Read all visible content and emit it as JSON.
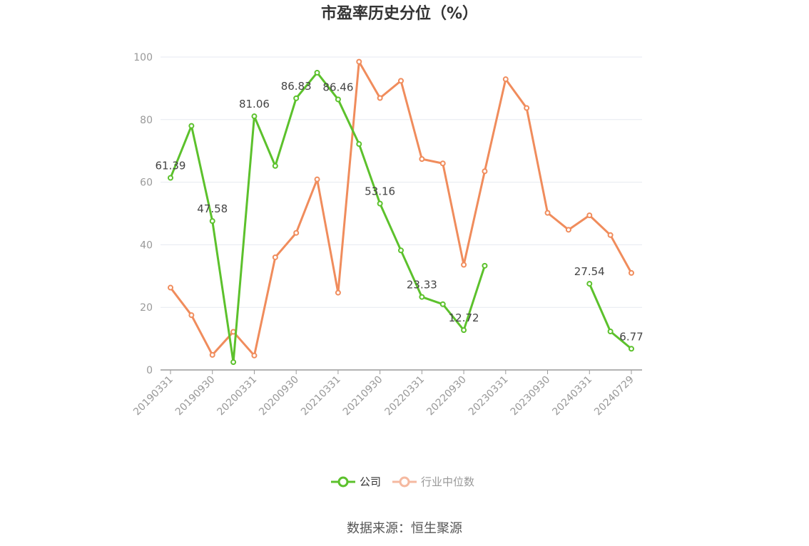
{
  "chart_data": {
    "type": "line",
    "title": "市盈率历史分位（%）",
    "source": "数据来源：恒生聚源",
    "ylim": [
      0,
      100
    ],
    "yticks": [
      0,
      20,
      40,
      60,
      80,
      100
    ],
    "grid": true,
    "legend_position": "bottom",
    "x": [
      "20190331",
      "20190630",
      "20190930",
      "20191231",
      "20200331",
      "20200630",
      "20200930",
      "20201231",
      "20210331",
      "20210630",
      "20210930",
      "20211231",
      "20220331",
      "20220630",
      "20220930",
      "20221231",
      "20230331",
      "20230630",
      "20230930",
      "20231231",
      "20240331",
      "20240630",
      "20240729"
    ],
    "xtick_labels": [
      "20190331",
      "20190930",
      "20200331",
      "20200930",
      "20210331",
      "20210930",
      "20220331",
      "20220930",
      "20230331",
      "20230930",
      "20240331",
      "20240729"
    ],
    "series": [
      {
        "name": "公司",
        "color": "#5cc12c",
        "values": [
          61.39,
          78.0,
          47.58,
          2.5,
          81.06,
          65.2,
          86.83,
          95.0,
          86.46,
          72.2,
          53.16,
          38.2,
          23.33,
          21.0,
          12.72,
          33.3,
          null,
          null,
          null,
          null,
          27.54,
          12.3,
          6.77
        ],
        "labels": [
          "61.39",
          null,
          "47.58",
          null,
          "81.06",
          null,
          "86.83",
          null,
          "86.46",
          null,
          "53.16",
          null,
          "23.33",
          null,
          "12.72",
          null,
          null,
          null,
          null,
          null,
          "27.54",
          null,
          "6.77"
        ]
      },
      {
        "name": "行业中位数",
        "color": "#f08c5c",
        "values": [
          26.3,
          17.5,
          4.8,
          12.2,
          4.6,
          36.0,
          43.8,
          60.9,
          24.7,
          98.5,
          86.9,
          92.4,
          67.4,
          66.0,
          33.6,
          63.5,
          92.9,
          83.7,
          50.2,
          44.8,
          49.4,
          43.1,
          31.0
        ]
      }
    ]
  }
}
